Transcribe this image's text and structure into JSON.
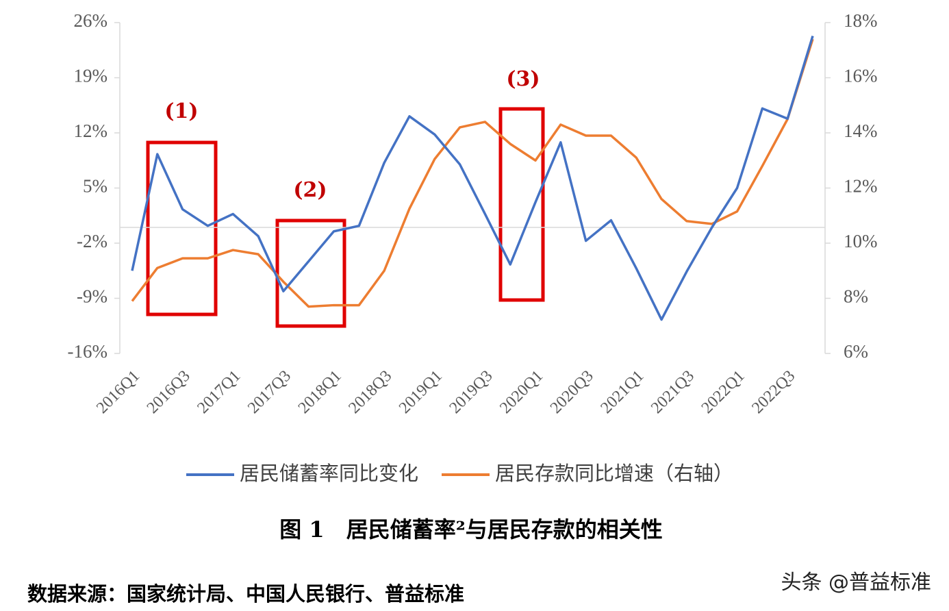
{
  "chart_data": {
    "type": "line",
    "categories": [
      "2016Q1",
      null,
      "2016Q3",
      null,
      "2017Q1",
      null,
      "2017Q3",
      null,
      "2018Q1",
      null,
      "2018Q3",
      null,
      "2019Q1",
      null,
      "2019Q3",
      null,
      "2020Q1",
      null,
      "2020Q3",
      null,
      "2021Q1",
      null,
      "2021Q3",
      null,
      "2022Q1",
      null,
      "2022Q3",
      null
    ],
    "series": [
      {
        "name": "居民储蓄率同比变化",
        "color": "#4472c4",
        "axis": "y",
        "values": [
          -5.5,
          9.3,
          2.3,
          0.2,
          1.7,
          -1.1,
          -8.1,
          -4.3,
          -0.5,
          0.2,
          8.2,
          14.1,
          11.8,
          8.0,
          1.7,
          -4.7,
          3.2,
          10.8,
          -1.7,
          0.9,
          -5.2,
          -11.7,
          -5.6,
          0.0,
          5.0,
          15.1,
          13.8,
          24.3
        ]
      },
      {
        "name": "居民存款同比增速（右轴）",
        "color": "#ed7d31",
        "axis": "y2",
        "values": [
          7.9,
          9.1,
          9.45,
          9.45,
          9.75,
          9.6,
          8.6,
          7.7,
          7.75,
          7.75,
          9.0,
          11.25,
          13.05,
          14.2,
          14.4,
          13.6,
          13.0,
          14.3,
          13.9,
          13.9,
          13.1,
          11.6,
          10.8,
          10.7,
          11.15,
          12.8,
          14.5,
          17.4
        ]
      }
    ],
    "ylim": [
      -16,
      26
    ],
    "yticks": [
      {
        "value": -16,
        "label": "-16%"
      },
      {
        "value": -9,
        "label": "-9%"
      },
      {
        "value": -2,
        "label": "-2%"
      },
      {
        "value": 5,
        "label": "5%"
      },
      {
        "value": 12,
        "label": "12%"
      },
      {
        "value": 19,
        "label": "19%"
      },
      {
        "value": 26,
        "label": "26%"
      }
    ],
    "y2lim": [
      6,
      18
    ],
    "y2ticks": [
      {
        "value": 6,
        "label": "6%"
      },
      {
        "value": 8,
        "label": "8%"
      },
      {
        "value": 10,
        "label": "10%"
      },
      {
        "value": 12,
        "label": "12%"
      },
      {
        "value": 14,
        "label": "14%"
      },
      {
        "value": 16,
        "label": "16%"
      },
      {
        "value": 18,
        "label": "18%"
      }
    ],
    "annotations": [
      "(1)",
      "(2)",
      "(3)"
    ],
    "caption": "图 1　居民储蓄率²与居民存款的相关性",
    "source": "数据来源：国家统计局、中国人民银行、普益标准",
    "watermark": "头条 @普益标准"
  }
}
